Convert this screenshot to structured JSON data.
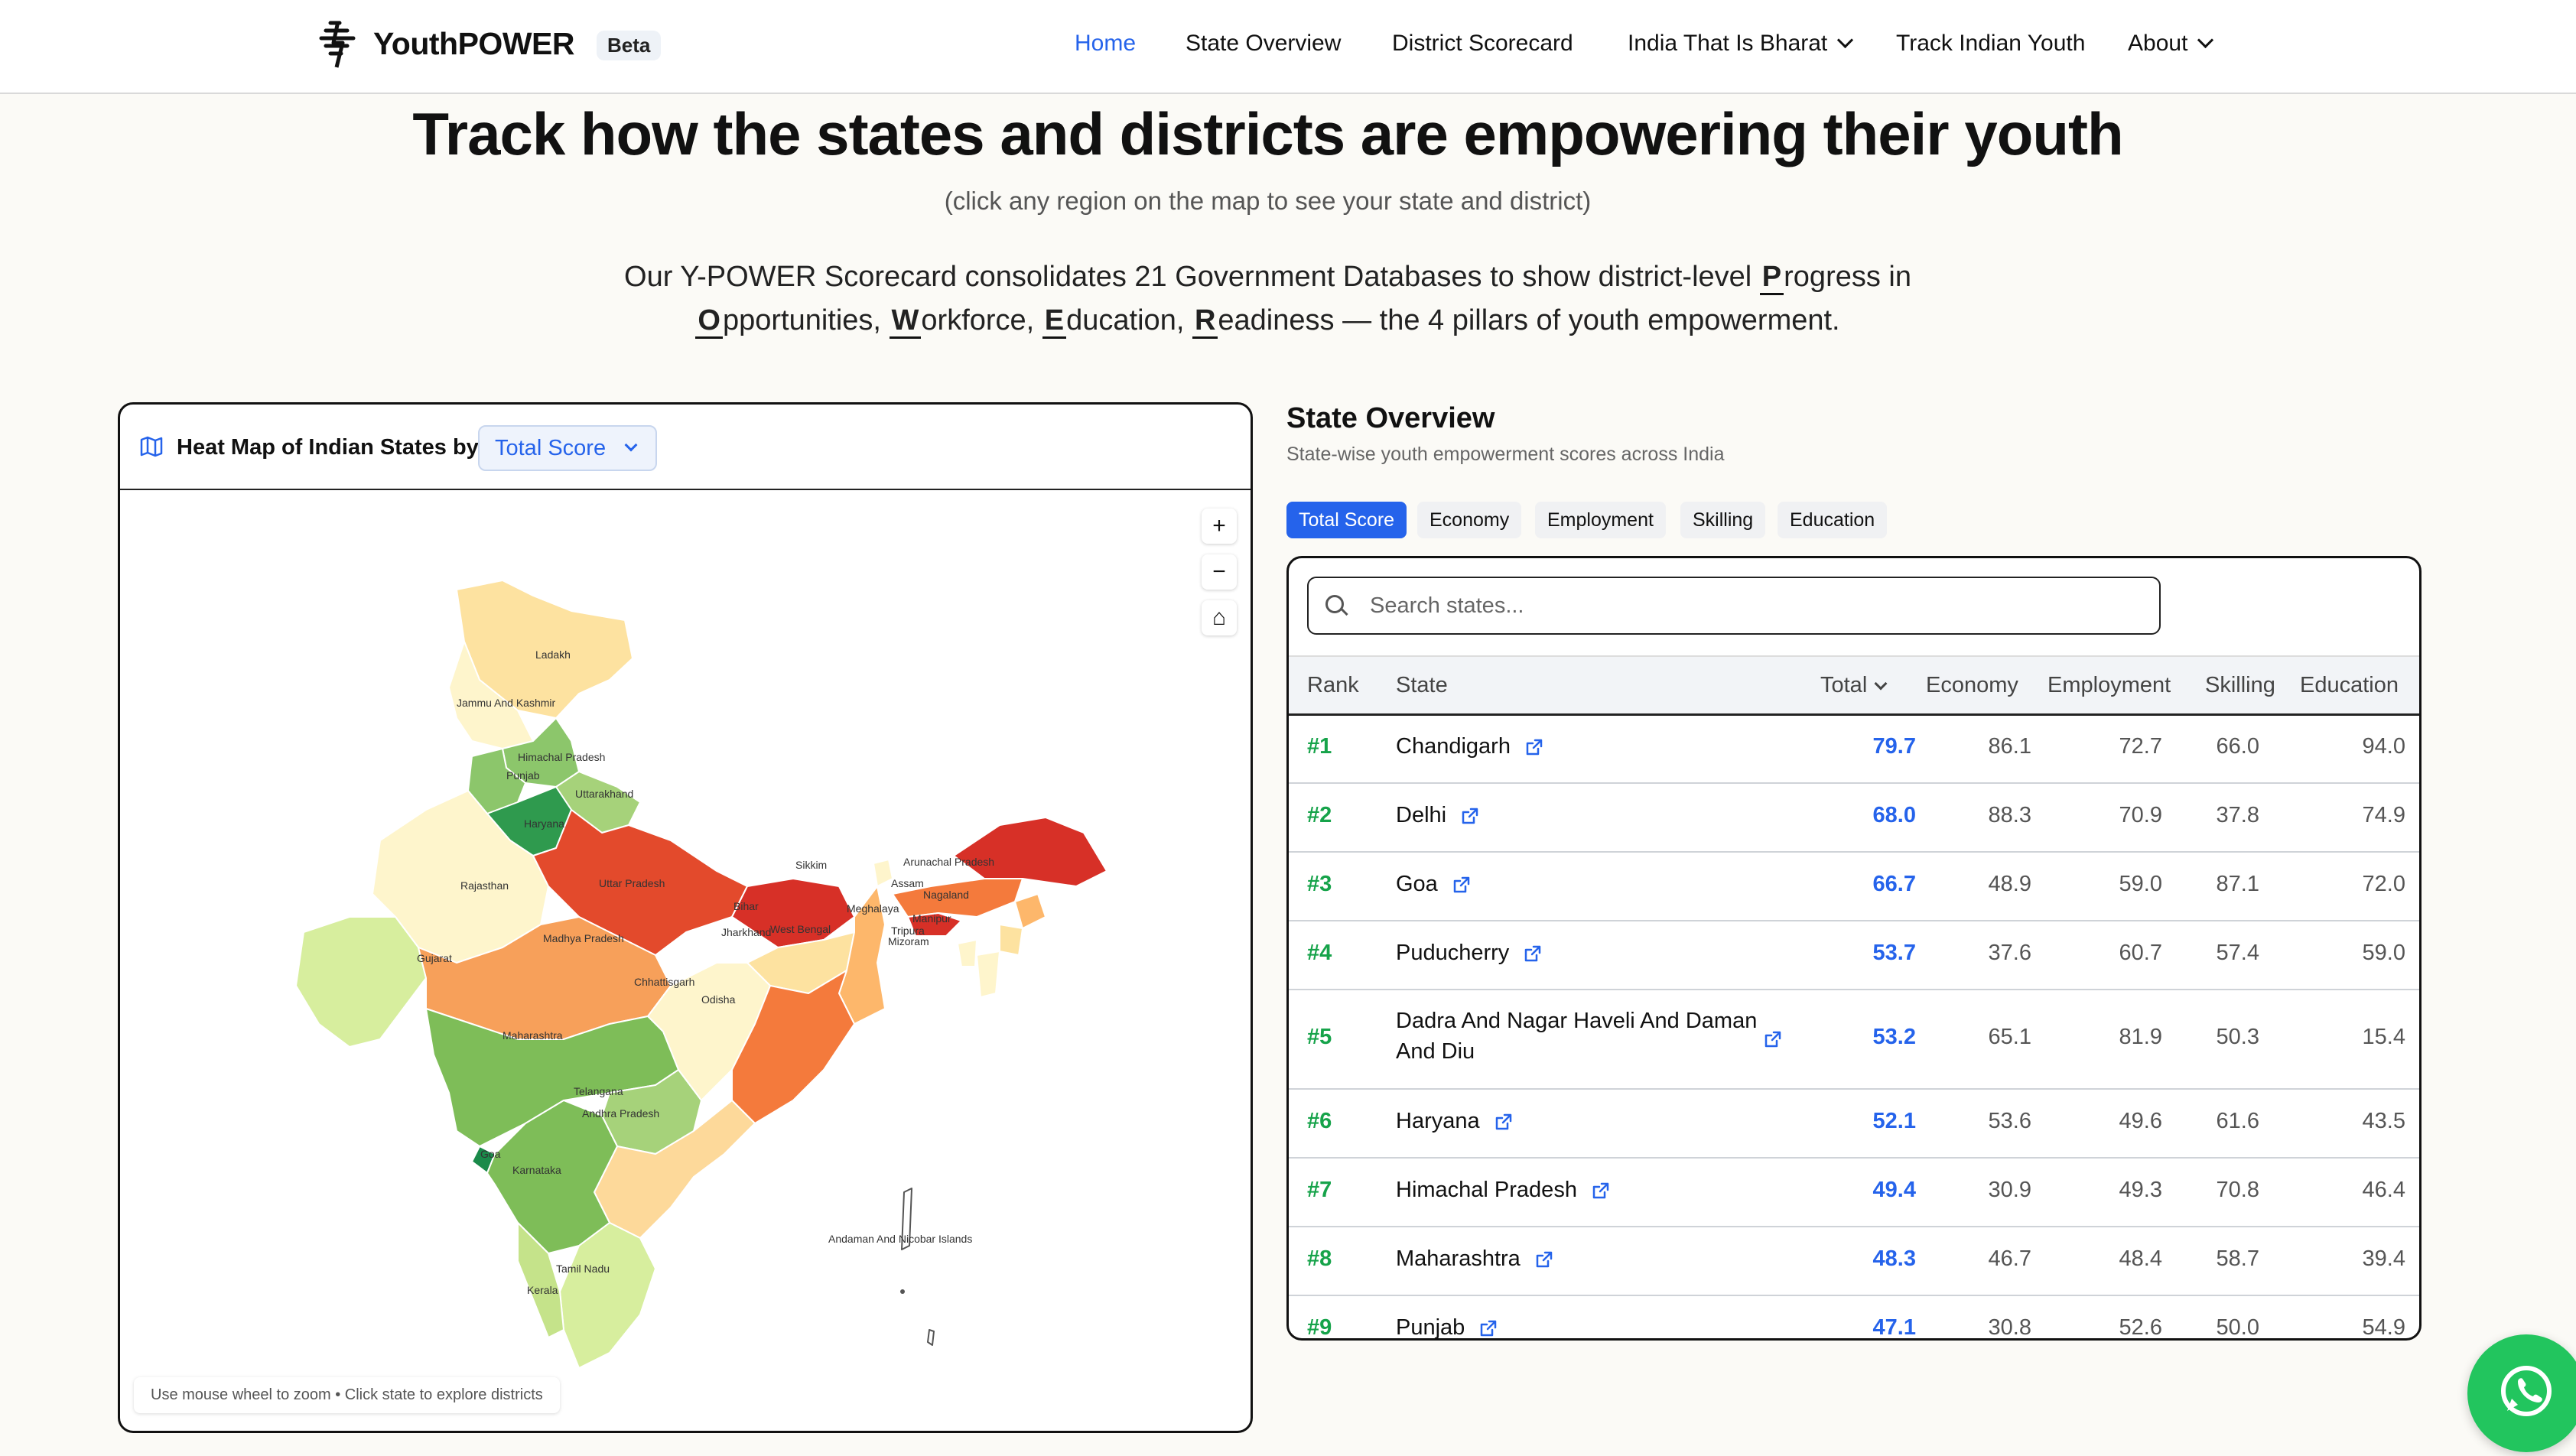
{
  "nav": {
    "brand": "YouthPOWER",
    "badge": "Beta",
    "links": [
      "Home",
      "State Overview",
      "District Scorecard",
      "India That Is Bharat",
      "Track Indian Youth",
      "About"
    ],
    "active": "Home"
  },
  "hero": {
    "title": "Track how the states and districts are empowering their youth",
    "subtitle": "(click any region on the map to see your state and district)",
    "intro_line1_pre": "Our Y-POWER Scorecard consolidates 21 Government Databases to show district-level ",
    "intro_P": "P",
    "intro_line1_post": "rogress in",
    "intro_O": "O",
    "intro_o_rest": "pportunities, ",
    "intro_W": "W",
    "intro_w_rest": "orkforce, ",
    "intro_E": "E",
    "intro_e_rest": "ducation, ",
    "intro_R": "R",
    "intro_r_rest": "eadiness — the 4 pillars of youth empowerment."
  },
  "map": {
    "title": "Heat Map of Indian States by",
    "metric": "Total Score",
    "zoom_in": "+",
    "zoom_out": "−",
    "home": "⌂",
    "hint": "Use mouse wheel to zoom • Click state to explore districts",
    "state_labels": {
      "ladakh": "Ladakh",
      "jk": "Jammu And Kashmir",
      "hp": "Himachal Pradesh",
      "punjab": "Punjab",
      "uttarakhand": "Uttarakhand",
      "haryana": "Haryana",
      "rajasthan": "Rajasthan",
      "up": "Uttar Pradesh",
      "bihar": "Bihar",
      "sikkim": "Sikkim",
      "arunachal": "Arunachal Pradesh",
      "assam": "Assam",
      "nagaland": "Nagaland",
      "meghalaya": "Meghalaya",
      "manipur": "Manipur",
      "tripura": "Tripura",
      "mizoram": "Mizoram",
      "gujarat": "Gujarat",
      "mp": "Madhya Pradesh",
      "jharkhand": "Jharkhand",
      "wb": "West Bengal",
      "chhattisgarh": "Chhattisgarh",
      "odisha": "Odisha",
      "maharashtra": "Maharashtra",
      "telangana": "Telangana",
      "goa": "Goa",
      "ap": "Andhra Pradesh",
      "karnataka": "Karnataka",
      "tn": "Tamil Nadu",
      "kerala": "Kerala",
      "andaman": "Andaman And Nicobar Islands"
    }
  },
  "overview": {
    "title": "State Overview",
    "subtitle": "State-wise youth empowerment scores across India",
    "tabs": [
      "Total Score",
      "Economy",
      "Employment",
      "Skilling",
      "Education"
    ],
    "active_tab": "Total Score",
    "search_placeholder": "Search states...",
    "columns": [
      "Rank",
      "State",
      "Total",
      "Economy",
      "Employment",
      "Skilling",
      "Education"
    ],
    "rows": [
      {
        "rank": "#1",
        "state": "Chandigarh",
        "total": "79.7",
        "economy": "86.1",
        "employment": "72.7",
        "skilling": "66.0",
        "education": "94.0"
      },
      {
        "rank": "#2",
        "state": "Delhi",
        "total": "68.0",
        "economy": "88.3",
        "employment": "70.9",
        "skilling": "37.8",
        "education": "74.9"
      },
      {
        "rank": "#3",
        "state": "Goa",
        "total": "66.7",
        "economy": "48.9",
        "employment": "59.0",
        "skilling": "87.1",
        "education": "72.0"
      },
      {
        "rank": "#4",
        "state": "Puducherry",
        "total": "53.7",
        "economy": "37.6",
        "employment": "60.7",
        "skilling": "57.4",
        "education": "59.0"
      },
      {
        "rank": "#5",
        "state": "Dadra And Nagar Haveli And Daman And Diu",
        "total": "53.2",
        "economy": "65.1",
        "employment": "81.9",
        "skilling": "50.3",
        "education": "15.4"
      },
      {
        "rank": "#6",
        "state": "Haryana",
        "total": "52.1",
        "economy": "53.6",
        "employment": "49.6",
        "skilling": "61.6",
        "education": "43.5"
      },
      {
        "rank": "#7",
        "state": "Himachal Pradesh",
        "total": "49.4",
        "economy": "30.9",
        "employment": "49.3",
        "skilling": "70.8",
        "education": "46.4"
      },
      {
        "rank": "#8",
        "state": "Maharashtra",
        "total": "48.3",
        "economy": "46.7",
        "employment": "48.4",
        "skilling": "58.7",
        "education": "39.4"
      },
      {
        "rank": "#9",
        "state": "Punjab",
        "total": "47.1",
        "economy": "30.8",
        "employment": "52.6",
        "skilling": "50.0",
        "education": "54.9"
      }
    ]
  }
}
